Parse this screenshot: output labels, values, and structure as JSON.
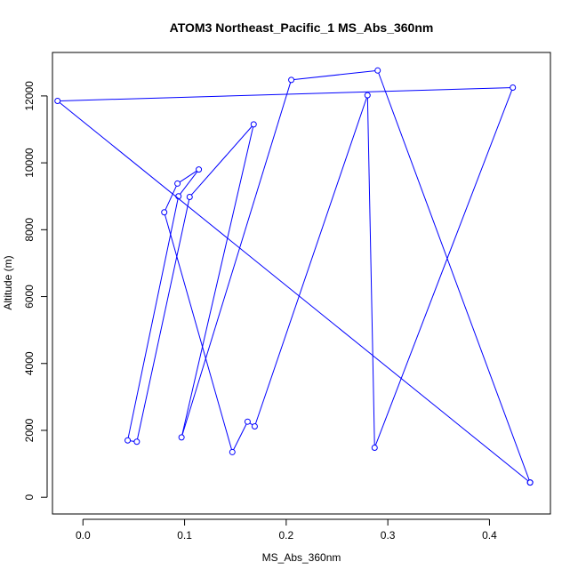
{
  "chart_data": {
    "type": "line",
    "title": "ATOM3 Northeast_Pacific_1 MS_Abs_360nm",
    "xlabel": "MS_Abs_360nm",
    "ylabel": "Altitude (m)",
    "xlim": [
      -0.03,
      0.46
    ],
    "ylim": [
      -500,
      13300
    ],
    "x_ticks": [
      0.0,
      0.1,
      0.2,
      0.3,
      0.4
    ],
    "x_tick_labels": [
      "0.0",
      "0.1",
      "0.2",
      "0.3",
      "0.4"
    ],
    "y_ticks": [
      0,
      2000,
      4000,
      6000,
      8000,
      10000,
      12000
    ],
    "y_tick_labels": [
      "0",
      "2000",
      "4000",
      "6000",
      "8000",
      "10000",
      "12000"
    ],
    "grid": false,
    "line_color": "#0000ff",
    "marker": "open-circle",
    "series": [
      {
        "points": [
          {
            "x": 0.44,
            "y": 440
          },
          {
            "x": -0.025,
            "y": 11850
          },
          {
            "x": 0.423,
            "y": 12250
          },
          {
            "x": 0.287,
            "y": 1480
          },
          {
            "x": 0.28,
            "y": 12020
          },
          {
            "x": 0.169,
            "y": 2120
          },
          {
            "x": 0.162,
            "y": 2260
          },
          {
            "x": 0.147,
            "y": 1350
          },
          {
            "x": 0.08,
            "y": 8520
          },
          {
            "x": 0.093,
            "y": 9380
          },
          {
            "x": 0.114,
            "y": 9800
          },
          {
            "x": 0.094,
            "y": 9000
          },
          {
            "x": 0.044,
            "y": 1700
          },
          {
            "x": 0.053,
            "y": 1660
          },
          {
            "x": 0.105,
            "y": 8980
          },
          {
            "x": 0.168,
            "y": 11150
          },
          {
            "x": 0.097,
            "y": 1790
          },
          {
            "x": 0.205,
            "y": 12480
          },
          {
            "x": 0.29,
            "y": 12760
          },
          {
            "x": 0.44,
            "y": 440
          }
        ]
      }
    ]
  }
}
